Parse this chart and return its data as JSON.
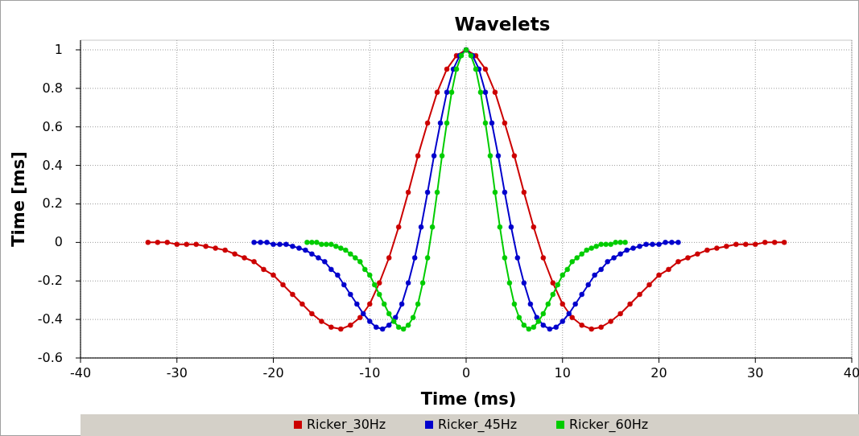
{
  "chart_data": {
    "type": "line",
    "title": "Wavelets",
    "xlabel": "Time (ms)",
    "ylabel": "Time [ms]",
    "xlim": [
      -40,
      40
    ],
    "xticks": [
      -40,
      -30,
      -20,
      -10,
      0,
      10,
      20,
      30,
      40
    ],
    "ylim": [
      -0.6,
      1.05
    ],
    "yticks": [
      -0.6,
      -0.4,
      -0.2,
      0,
      0.2,
      0.4,
      0.6,
      0.8,
      1
    ],
    "grid": true,
    "legend": "bottom",
    "marker": "circle",
    "line_style": "solid",
    "series": [
      {
        "name": "Ricker_30Hz",
        "color": "#cc0000",
        "x": [
          -33,
          -32,
          -31,
          -30,
          -29,
          -28,
          -27,
          -26,
          -25,
          -24,
          -23,
          -22,
          -21,
          -20,
          -19,
          -18,
          -17,
          -16,
          -15,
          -14,
          -13,
          -12,
          -11,
          -10,
          -9,
          -8,
          -7,
          -6,
          -5,
          -4,
          -3,
          -2,
          -1,
          0,
          1,
          2,
          3,
          4,
          5,
          6,
          7,
          8,
          9,
          10,
          11,
          12,
          13,
          14,
          15,
          16,
          17,
          18,
          19,
          20,
          21,
          22,
          23,
          24,
          25,
          26,
          27,
          28,
          29,
          30,
          31,
          32,
          33
        ],
        "values": [
          0,
          0,
          0,
          -0.01,
          -0.01,
          -0.01,
          -0.02,
          -0.03,
          -0.04,
          -0.06,
          -0.08,
          -0.1,
          -0.14,
          -0.17,
          -0.22,
          -0.27,
          -0.32,
          -0.37,
          -0.41,
          -0.44,
          -0.45,
          -0.43,
          -0.39,
          -0.32,
          -0.21,
          -0.08,
          0.08,
          0.26,
          0.45,
          0.62,
          0.78,
          0.9,
          0.97,
          1,
          0.97,
          0.9,
          0.78,
          0.62,
          0.45,
          0.26,
          0.08,
          -0.08,
          -0.21,
          -0.32,
          -0.39,
          -0.43,
          -0.45,
          -0.44,
          -0.41,
          -0.37,
          -0.32,
          -0.27,
          -0.22,
          -0.17,
          -0.14,
          -0.1,
          -0.08,
          -0.06,
          -0.04,
          -0.03,
          -0.02,
          -0.01,
          -0.01,
          -0.01,
          0,
          0,
          0
        ]
      },
      {
        "name": "Ricker_45Hz",
        "color": "#0000cc",
        "x": [
          -22,
          -21.33,
          -20.67,
          -20,
          -19.33,
          -18.67,
          -18,
          -17.33,
          -16.67,
          -16,
          -15.33,
          -14.67,
          -14,
          -13.33,
          -12.67,
          -12,
          -11.33,
          -10.67,
          -10,
          -9.33,
          -8.67,
          -8,
          -7.33,
          -6.67,
          -6,
          -5.33,
          -4.67,
          -4,
          -3.33,
          -2.67,
          -2,
          -1.33,
          -0.67,
          0,
          0.67,
          1.33,
          2,
          2.67,
          3.33,
          4,
          4.67,
          5.33,
          6,
          6.67,
          7.33,
          8,
          8.67,
          9.33,
          10,
          10.67,
          11.33,
          12,
          12.67,
          13.33,
          14,
          14.67,
          15.33,
          16,
          16.67,
          17.33,
          18,
          18.67,
          19.33,
          20,
          20.67,
          21.33,
          22
        ],
        "values": [
          0,
          0,
          0,
          -0.01,
          -0.01,
          -0.01,
          -0.02,
          -0.03,
          -0.04,
          -0.06,
          -0.08,
          -0.1,
          -0.14,
          -0.17,
          -0.22,
          -0.27,
          -0.32,
          -0.37,
          -0.41,
          -0.44,
          -0.45,
          -0.43,
          -0.39,
          -0.32,
          -0.21,
          -0.08,
          0.08,
          0.26,
          0.45,
          0.62,
          0.78,
          0.9,
          0.97,
          1,
          0.97,
          0.9,
          0.78,
          0.62,
          0.45,
          0.26,
          0.08,
          -0.08,
          -0.21,
          -0.32,
          -0.39,
          -0.43,
          -0.45,
          -0.44,
          -0.41,
          -0.37,
          -0.32,
          -0.27,
          -0.22,
          -0.17,
          -0.14,
          -0.1,
          -0.08,
          -0.06,
          -0.04,
          -0.03,
          -0.02,
          -0.01,
          -0.01,
          -0.01,
          0,
          0,
          0
        ]
      },
      {
        "name": "Ricker_60Hz",
        "color": "#00cc00",
        "x": [
          -16.5,
          -16,
          -15.5,
          -15,
          -14.5,
          -14,
          -13.5,
          -13,
          -12.5,
          -12,
          -11.5,
          -11,
          -10.5,
          -10,
          -9.5,
          -9,
          -8.5,
          -8,
          -7.5,
          -7,
          -6.5,
          -6,
          -5.5,
          -5,
          -4.5,
          -4,
          -3.5,
          -3,
          -2.5,
          -2,
          -1.5,
          -1,
          -0.5,
          0,
          0.5,
          1,
          1.5,
          2,
          2.5,
          3,
          3.5,
          4,
          4.5,
          5,
          5.5,
          6,
          6.5,
          7,
          7.5,
          8,
          8.5,
          9,
          9.5,
          10,
          10.5,
          11,
          11.5,
          12,
          12.5,
          13,
          13.5,
          14,
          14.5,
          15,
          15.5,
          16,
          16.5
        ],
        "values": [
          0,
          0,
          0,
          -0.01,
          -0.01,
          -0.01,
          -0.02,
          -0.03,
          -0.04,
          -0.06,
          -0.08,
          -0.1,
          -0.14,
          -0.17,
          -0.22,
          -0.27,
          -0.32,
          -0.37,
          -0.41,
          -0.44,
          -0.45,
          -0.43,
          -0.39,
          -0.32,
          -0.21,
          -0.08,
          0.08,
          0.26,
          0.45,
          0.62,
          0.78,
          0.9,
          0.97,
          1,
          0.97,
          0.9,
          0.78,
          0.62,
          0.45,
          0.26,
          0.08,
          -0.08,
          -0.21,
          -0.32,
          -0.39,
          -0.43,
          -0.45,
          -0.44,
          -0.41,
          -0.37,
          -0.32,
          -0.27,
          -0.22,
          -0.17,
          -0.14,
          -0.1,
          -0.08,
          -0.06,
          -0.04,
          -0.03,
          -0.02,
          -0.01,
          -0.01,
          -0.01,
          0,
          0,
          0
        ]
      }
    ]
  }
}
